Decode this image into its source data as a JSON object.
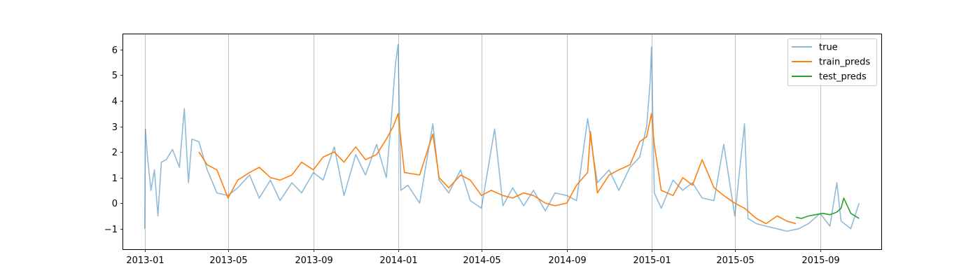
{
  "chart_data": {
    "type": "line",
    "title": "",
    "xlabel": "",
    "ylabel": "",
    "x_axis": {
      "type": "date",
      "range": [
        "2012-12-01",
        "2015-11-28"
      ],
      "ticks": [
        "2013-01",
        "2013-05",
        "2013-09",
        "2014-01",
        "2014-05",
        "2014-09",
        "2015-01",
        "2015-05",
        "2015-09"
      ],
      "grid": true
    },
    "y_axis": {
      "range": [
        -1.8,
        6.6
      ],
      "ticks": [
        "6",
        "5",
        "4",
        "3",
        "2",
        "1",
        "0",
        "−1"
      ],
      "tick_values": [
        6,
        5,
        4,
        3,
        2,
        1,
        0,
        -1
      ],
      "grid": false
    },
    "legend": {
      "position": "top-right"
    },
    "series": [
      {
        "name": "true",
        "color": "#1f77b4",
        "alpha": 0.5,
        "x": [
          "2013-01-01",
          "2013-01-02",
          "2013-01-05",
          "2013-01-10",
          "2013-01-15",
          "2013-01-20",
          "2013-01-25",
          "2013-02-01",
          "2013-02-10",
          "2013-02-20",
          "2013-02-27",
          "2013-03-05",
          "2013-03-10",
          "2013-03-20",
          "2013-04-01",
          "2013-04-15",
          "2013-05-01",
          "2013-05-15",
          "2013-06-01",
          "2013-06-15",
          "2013-07-01",
          "2013-07-15",
          "2013-08-01",
          "2013-08-15",
          "2013-09-01",
          "2013-09-15",
          "2013-10-01",
          "2013-10-15",
          "2013-11-01",
          "2013-11-15",
          "2013-12-01",
          "2013-12-15",
          "2013-12-22",
          "2013-12-28",
          "2014-01-01",
          "2014-01-05",
          "2014-01-15",
          "2014-02-01",
          "2014-02-20",
          "2014-03-01",
          "2014-03-15",
          "2014-04-01",
          "2014-04-15",
          "2014-05-01",
          "2014-05-20",
          "2014-06-01",
          "2014-06-15",
          "2014-07-01",
          "2014-07-15",
          "2014-08-01",
          "2014-08-15",
          "2014-09-01",
          "2014-09-15",
          "2014-10-01",
          "2014-10-15",
          "2014-11-01",
          "2014-11-15",
          "2014-12-01",
          "2014-12-15",
          "2014-12-25",
          "2014-12-30",
          "2015-01-01",
          "2015-01-05",
          "2015-01-15",
          "2015-02-01",
          "2015-02-15",
          "2015-03-01",
          "2015-03-15",
          "2015-04-01",
          "2015-04-15",
          "2015-05-01",
          "2015-05-15",
          "2015-05-20",
          "2015-06-01",
          "2015-06-15",
          "2015-07-01",
          "2015-07-15",
          "2015-08-01",
          "2015-08-15",
          "2015-09-01",
          "2015-09-15",
          "2015-09-25",
          "2015-10-01",
          "2015-10-15",
          "2015-10-27"
        ],
        "y": [
          -1.0,
          2.9,
          1.8,
          0.5,
          1.3,
          -0.5,
          1.6,
          1.7,
          2.1,
          1.4,
          3.7,
          0.8,
          2.5,
          2.4,
          1.3,
          0.4,
          0.3,
          0.6,
          1.1,
          0.2,
          0.9,
          0.1,
          0.8,
          0.4,
          1.2,
          0.9,
          2.2,
          0.3,
          1.9,
          1.1,
          2.3,
          1.0,
          3.2,
          5.4,
          6.2,
          0.5,
          0.7,
          0.0,
          3.1,
          0.9,
          0.4,
          1.3,
          0.1,
          -0.2,
          2.9,
          -0.1,
          0.6,
          -0.1,
          0.5,
          -0.3,
          0.4,
          0.3,
          0.1,
          3.3,
          0.8,
          1.3,
          0.5,
          1.4,
          1.8,
          3.0,
          4.7,
          6.1,
          0.4,
          -0.2,
          0.9,
          0.5,
          0.8,
          0.2,
          0.1,
          2.3,
          -0.5,
          3.1,
          -0.6,
          -0.8,
          -0.9,
          -1.0,
          -1.1,
          -1.0,
          -0.8,
          -0.4,
          -0.9,
          0.8,
          -0.7,
          -1.0,
          0.0
        ]
      },
      {
        "name": "train_preds",
        "color": "#ff7f0e",
        "alpha": 1.0,
        "x": [
          "2013-03-20",
          "2013-04-01",
          "2013-04-15",
          "2013-05-01",
          "2013-05-15",
          "2013-06-01",
          "2013-06-15",
          "2013-07-01",
          "2013-07-15",
          "2013-08-01",
          "2013-08-15",
          "2013-09-01",
          "2013-09-15",
          "2013-10-01",
          "2013-10-15",
          "2013-11-01",
          "2013-11-15",
          "2013-12-01",
          "2013-12-15",
          "2013-12-25",
          "2014-01-01",
          "2014-01-10",
          "2014-02-01",
          "2014-02-20",
          "2014-03-01",
          "2014-03-15",
          "2014-04-01",
          "2014-04-15",
          "2014-05-01",
          "2014-05-15",
          "2014-06-01",
          "2014-06-15",
          "2014-07-01",
          "2014-07-15",
          "2014-08-01",
          "2014-08-15",
          "2014-09-01",
          "2014-09-15",
          "2014-10-01",
          "2014-10-05",
          "2014-10-15",
          "2014-11-01",
          "2014-11-15",
          "2014-12-01",
          "2014-12-15",
          "2014-12-25",
          "2015-01-01",
          "2015-01-05",
          "2015-01-15",
          "2015-02-01",
          "2015-02-15",
          "2015-03-01",
          "2015-03-15",
          "2015-04-01",
          "2015-04-15",
          "2015-05-01",
          "2015-05-15",
          "2015-06-01",
          "2015-06-15",
          "2015-07-01",
          "2015-07-15",
          "2015-07-28"
        ],
        "y": [
          2.0,
          1.5,
          1.3,
          0.2,
          0.9,
          1.2,
          1.4,
          1.0,
          0.9,
          1.1,
          1.6,
          1.3,
          1.8,
          2.0,
          1.6,
          2.2,
          1.7,
          1.9,
          2.5,
          3.0,
          3.5,
          1.2,
          1.1,
          2.7,
          1.0,
          0.6,
          1.1,
          0.9,
          0.3,
          0.5,
          0.3,
          0.2,
          0.4,
          0.3,
          0.0,
          -0.1,
          0.0,
          0.7,
          1.2,
          2.8,
          0.4,
          1.1,
          1.3,
          1.5,
          2.4,
          2.6,
          3.5,
          2.3,
          0.5,
          0.3,
          1.0,
          0.7,
          1.7,
          0.6,
          0.3,
          0.0,
          -0.2,
          -0.6,
          -0.8,
          -0.5,
          -0.7,
          -0.8
        ]
      },
      {
        "name": "test_preds",
        "color": "#2ca02c",
        "alpha": 1.0,
        "x": [
          "2015-07-28",
          "2015-08-05",
          "2015-08-15",
          "2015-08-25",
          "2015-09-05",
          "2015-09-15",
          "2015-09-25",
          "2015-10-01",
          "2015-10-05",
          "2015-10-15",
          "2015-10-27"
        ],
        "y": [
          -0.55,
          -0.6,
          -0.5,
          -0.45,
          -0.4,
          -0.45,
          -0.35,
          -0.2,
          0.2,
          -0.4,
          -0.6
        ]
      }
    ]
  }
}
